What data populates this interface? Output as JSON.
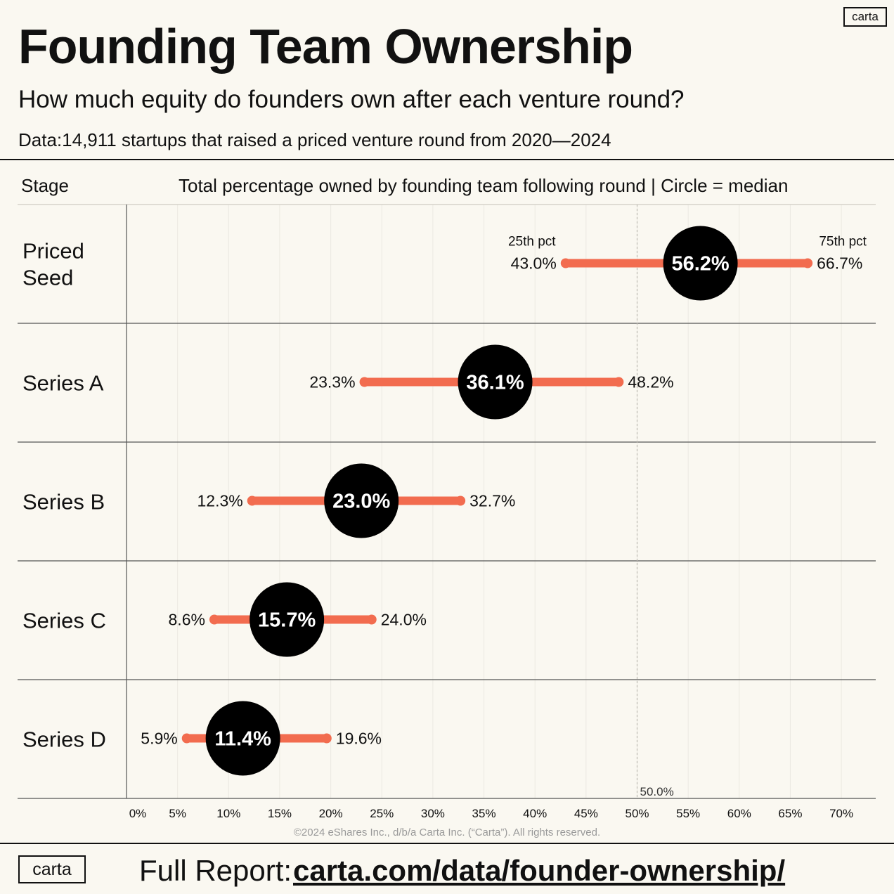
{
  "logo": "carta",
  "title": "Founding Team Ownership",
  "subtitle": "How much equity do founders own after each venture round?",
  "source": "Data:14,911 startups that raised a priced venture round from 2020—2024",
  "columns": {
    "stage": "Stage",
    "values": "Total percentage owned by founding team following round | Circle = median"
  },
  "chart_data": {
    "type": "range-dot",
    "x_ticks": [
      0,
      5,
      10,
      15,
      20,
      25,
      30,
      35,
      40,
      45,
      50,
      55,
      60,
      65,
      70
    ],
    "x_tick_labels": [
      "0%",
      "5%",
      "10%",
      "15%",
      "20%",
      "25%",
      "30%",
      "35%",
      "40%",
      "45%",
      "50%",
      "55%",
      "60%",
      "65%",
      "70%"
    ],
    "xlim": [
      0,
      73
    ],
    "reference_line": {
      "value": 50,
      "label": "50.0%"
    },
    "legend": {
      "p25": "25th pct",
      "p75": "75th pct"
    },
    "rows": [
      {
        "stage": [
          "Priced",
          "Seed"
        ],
        "p25": 43.0,
        "median": 56.2,
        "p75": 66.7,
        "p25_label": "43.0%",
        "median_label": "56.2%",
        "p75_label": "66.7%"
      },
      {
        "stage": [
          "Series A"
        ],
        "p25": 23.3,
        "median": 36.1,
        "p75": 48.2,
        "p25_label": "23.3%",
        "median_label": "36.1%",
        "p75_label": "48.2%"
      },
      {
        "stage": [
          "Series B"
        ],
        "p25": 12.3,
        "median": 23.0,
        "p75": 32.7,
        "p25_label": "12.3%",
        "median_label": "23.0%",
        "p75_label": "32.7%"
      },
      {
        "stage": [
          "Series C"
        ],
        "p25": 8.6,
        "median": 15.7,
        "p75": 24.0,
        "p25_label": "8.6%",
        "median_label": "15.7%",
        "p75_label": "24.0%"
      },
      {
        "stage": [
          "Series D"
        ],
        "p25": 5.9,
        "median": 11.4,
        "p75": 19.6,
        "p25_label": "5.9%",
        "median_label": "11.4%",
        "p75_label": "19.6%"
      }
    ]
  },
  "colors": {
    "background": "#faf8f1",
    "range": "#f26c4f",
    "median": "#000000",
    "gridline": "#ebe9e2",
    "rule": "#111111"
  },
  "copyright": "©2024 eShares Inc., d/b/a Carta Inc. (“Carta”). All rights reserved.",
  "footer": {
    "label": "Full Report:",
    "link": "carta.com/data/founder-ownership/"
  }
}
